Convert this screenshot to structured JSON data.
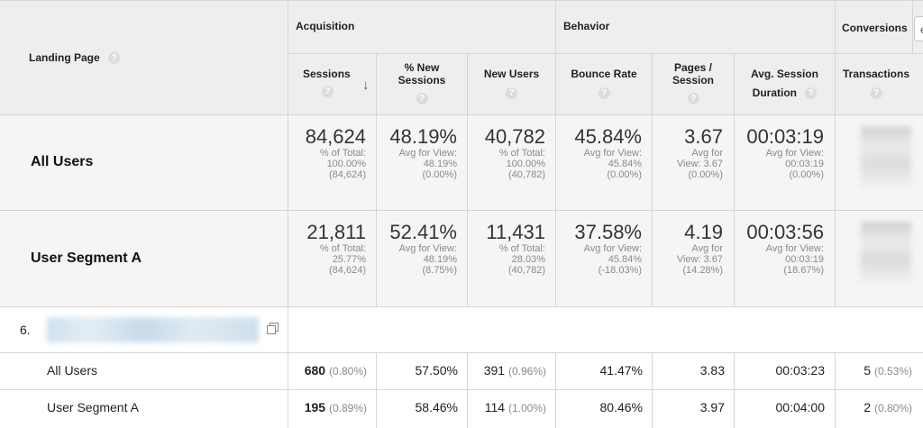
{
  "header": {
    "landing_page": "Landing Page",
    "groups": {
      "acquisition": "Acquisition",
      "behavior": "Behavior",
      "conversions": "Conversions"
    },
    "conversions_select_char": "e",
    "help_glyph": "?",
    "sort_glyph": "↓",
    "columns": {
      "sessions": "Sessions",
      "pct_new_1": "% New",
      "pct_new_2": "Sessions",
      "new_users": "New Users",
      "bounce_rate": "Bounce Rate",
      "pages_1": "Pages /",
      "pages_2": "Session",
      "avg_1": "Avg. Session",
      "avg_2": "Duration",
      "transactions": "Transactions"
    }
  },
  "summary_rows": [
    {
      "label": "All Users",
      "sessions": {
        "value": "84,624",
        "l1": "% of Total:",
        "l2": "100.00%",
        "l3": "(84,624)"
      },
      "pct_new": {
        "value": "48.19%",
        "l1": "Avg for View:",
        "l2": "48.19%",
        "l3": "(0.00%)"
      },
      "new_users": {
        "value": "40,782",
        "l1": "% of Total:",
        "l2": "100.00%",
        "l3": "(40,782)"
      },
      "bounce": {
        "value": "45.84%",
        "l1": "Avg for View:",
        "l2": "45.84%",
        "l3": "(0.00%)"
      },
      "pages": {
        "value": "3.67",
        "l1": "Avg for",
        "l2": "View: 3.67",
        "l3": "(0.00%)"
      },
      "duration": {
        "value": "00:03:19",
        "l1": "Avg for View:",
        "l2": "00:03:19",
        "l3": "(0.00%)"
      }
    },
    {
      "label": "User Segment A",
      "sessions": {
        "value": "21,811",
        "l1": "% of Total:",
        "l2": "25.77%",
        "l3": "(84,624)"
      },
      "pct_new": {
        "value": "52.41%",
        "l1": "Avg for View:",
        "l2": "48.19%",
        "l3": "(8.75%)"
      },
      "new_users": {
        "value": "11,431",
        "l1": "% of Total:",
        "l2": "28.03%",
        "l3": "(40,782)"
      },
      "bounce": {
        "value": "37.58%",
        "l1": "Avg for View:",
        "l2": "45.84%",
        "l3": "(-18.03%)"
      },
      "pages": {
        "value": "4.19",
        "l1": "Avg for",
        "l2": "View: 3.67",
        "l3": "(14.28%)"
      },
      "duration": {
        "value": "00:03:56",
        "l1": "Avg for View:",
        "l2": "00:03:19",
        "l3": "(18.67%)"
      }
    }
  ],
  "detail": {
    "index": "6.",
    "rows": [
      {
        "label": "All Users",
        "sessions": "680",
        "sessions_pct": "(0.80%)",
        "pct_new": "57.50%",
        "new_users": "391",
        "new_users_pct": "(0.96%)",
        "bounce": "41.47%",
        "pages": "3.83",
        "duration": "00:03:23",
        "transactions": "5",
        "transactions_pct": "(0.53%)"
      },
      {
        "label": "User Segment A",
        "sessions": "195",
        "sessions_pct": "(0.89%)",
        "pct_new": "58.46%",
        "new_users": "114",
        "new_users_pct": "(1.00%)",
        "bounce": "80.46%",
        "pages": "3.97",
        "duration": "00:04:00",
        "transactions": "2",
        "transactions_pct": "(0.80%)"
      }
    ]
  }
}
